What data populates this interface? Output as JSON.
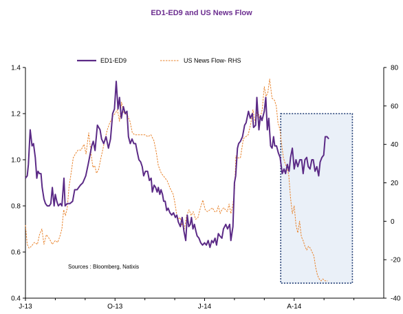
{
  "chart_data": {
    "type": "line",
    "title": "ED1-ED9  and US News Flow",
    "source_note": "Sources  : Bloomberg,  Natixis",
    "x_ticks": [
      "J-13",
      "O-13",
      "J-14",
      "A-14"
    ],
    "y_left_ticks": [
      "0.4",
      "0.6",
      "0.8",
      "1.0",
      "1.2",
      "1.4"
    ],
    "y_right_ticks": [
      "-40",
      "-20",
      "0",
      "20",
      "40",
      "60",
      "80"
    ],
    "ylim_left": [
      0.4,
      1.4
    ],
    "ylim_right": [
      -40,
      80
    ],
    "xlim": [
      0,
      12
    ],
    "grid": false,
    "legend_position": "top",
    "colors": {
      "ed": "#5b2a86",
      "news": "#e8822a",
      "box_border": "#1f3b73",
      "box_fill": "#eaf0f8"
    },
    "highlight_region": {
      "x": [
        8.55,
        10.95
      ],
      "y_left": [
        0.465,
        1.2
      ]
    },
    "series": [
      {
        "name": "ED1-ED9",
        "axis": "left",
        "style": "solid",
        "points": [
          [
            0.0,
            0.92
          ],
          [
            0.06,
            0.93
          ],
          [
            0.1,
            0.98
          ],
          [
            0.16,
            1.13
          ],
          [
            0.22,
            1.06
          ],
          [
            0.27,
            1.07
          ],
          [
            0.33,
            1.01
          ],
          [
            0.38,
            0.92
          ],
          [
            0.42,
            0.95
          ],
          [
            0.47,
            0.94
          ],
          [
            0.52,
            0.94
          ],
          [
            0.56,
            0.88
          ],
          [
            0.62,
            0.83
          ],
          [
            0.67,
            0.81
          ],
          [
            0.73,
            0.8
          ],
          [
            0.8,
            0.8
          ],
          [
            0.85,
            0.81
          ],
          [
            0.9,
            0.88
          ],
          [
            0.96,
            0.8
          ],
          [
            1.0,
            0.85
          ],
          [
            1.05,
            0.82
          ],
          [
            1.1,
            0.8
          ],
          [
            1.17,
            0.81
          ],
          [
            1.22,
            0.8
          ],
          [
            1.29,
            0.92
          ],
          [
            1.33,
            0.8
          ],
          [
            1.4,
            0.81
          ],
          [
            1.49,
            0.81
          ],
          [
            1.58,
            0.82
          ],
          [
            1.65,
            0.87
          ],
          [
            1.73,
            0.87
          ],
          [
            1.84,
            0.89
          ],
          [
            1.92,
            0.9
          ],
          [
            2.02,
            0.93
          ],
          [
            2.1,
            0.98
          ],
          [
            2.22,
            1.06
          ],
          [
            2.27,
            1.08
          ],
          [
            2.33,
            1.04
          ],
          [
            2.41,
            1.15
          ],
          [
            2.5,
            1.13
          ],
          [
            2.55,
            1.09
          ],
          [
            2.62,
            1.07
          ],
          [
            2.7,
            1.1
          ],
          [
            2.78,
            1.05
          ],
          [
            2.85,
            1.09
          ],
          [
            2.92,
            1.2
          ],
          [
            2.98,
            1.22
          ],
          [
            3.04,
            1.34
          ],
          [
            3.1,
            1.22
          ],
          [
            3.15,
            1.27
          ],
          [
            3.21,
            1.18
          ],
          [
            3.28,
            1.23
          ],
          [
            3.34,
            1.2
          ],
          [
            3.4,
            1.21
          ],
          [
            3.45,
            1.1
          ],
          [
            3.51,
            1.07
          ],
          [
            3.57,
            1.09
          ],
          [
            3.63,
            1.07
          ],
          [
            3.69,
            1.07
          ],
          [
            3.75,
            1.03
          ],
          [
            3.8,
            1.0
          ],
          [
            3.86,
            0.99
          ],
          [
            3.91,
            0.97
          ],
          [
            3.96,
            0.93
          ],
          [
            4.02,
            0.95
          ],
          [
            4.09,
            0.95
          ],
          [
            4.15,
            0.91
          ],
          [
            4.21,
            0.92
          ],
          [
            4.25,
            0.86
          ],
          [
            4.31,
            0.89
          ],
          [
            4.36,
            0.88
          ],
          [
            4.41,
            0.86
          ],
          [
            4.45,
            0.88
          ],
          [
            4.5,
            0.85
          ],
          [
            4.54,
            0.87
          ],
          [
            4.59,
            0.85
          ],
          [
            4.63,
            0.82
          ],
          [
            4.68,
            0.82
          ],
          [
            4.73,
            0.78
          ],
          [
            4.78,
            0.79
          ],
          [
            4.84,
            0.77
          ],
          [
            4.9,
            0.76
          ],
          [
            4.96,
            0.77
          ],
          [
            5.02,
            0.75
          ],
          [
            5.07,
            0.76
          ],
          [
            5.12,
            0.73
          ],
          [
            5.19,
            0.71
          ],
          [
            5.25,
            0.75
          ],
          [
            5.31,
            0.69
          ],
          [
            5.37,
            0.65
          ],
          [
            5.42,
            0.76
          ],
          [
            5.47,
            0.71
          ],
          [
            5.52,
            0.72
          ],
          [
            5.56,
            0.75
          ],
          [
            5.61,
            0.7
          ],
          [
            5.66,
            0.72
          ],
          [
            5.71,
            0.69
          ],
          [
            5.75,
            0.67
          ],
          [
            5.81,
            0.66
          ],
          [
            5.87,
            0.64
          ],
          [
            5.93,
            0.63
          ],
          [
            6.0,
            0.64
          ],
          [
            6.06,
            0.63
          ],
          [
            6.12,
            0.65
          ],
          [
            6.18,
            0.62
          ],
          [
            6.24,
            0.65
          ],
          [
            6.29,
            0.64
          ],
          [
            6.35,
            0.66
          ],
          [
            6.4,
            0.63
          ],
          [
            6.46,
            0.68
          ],
          [
            6.51,
            0.67
          ],
          [
            6.58,
            0.66
          ],
          [
            6.63,
            0.7
          ],
          [
            6.71,
            0.72
          ],
          [
            6.77,
            0.7
          ],
          [
            6.84,
            0.72
          ],
          [
            6.88,
            0.65
          ],
          [
            6.95,
            0.71
          ],
          [
            7.0,
            0.9
          ],
          [
            7.04,
            0.93
          ],
          [
            7.1,
            1.05
          ],
          [
            7.14,
            1.07
          ],
          [
            7.2,
            1.08
          ],
          [
            7.27,
            1.1
          ],
          [
            7.34,
            1.15
          ],
          [
            7.39,
            1.16
          ],
          [
            7.47,
            1.21
          ],
          [
            7.53,
            1.18
          ],
          [
            7.6,
            1.2
          ],
          [
            7.64,
            1.14
          ],
          [
            7.71,
            1.15
          ],
          [
            7.75,
            1.27
          ],
          [
            7.82,
            1.13
          ],
          [
            7.87,
            1.19
          ],
          [
            7.92,
            1.17
          ],
          [
            8.0,
            1.21
          ],
          [
            8.05,
            1.27
          ],
          [
            8.1,
            1.13
          ],
          [
            8.15,
            1.18
          ],
          [
            8.21,
            1.06
          ],
          [
            8.26,
            1.05
          ],
          [
            8.31,
            1.1
          ],
          [
            8.35,
            1.06
          ],
          [
            8.41,
            1.06
          ],
          [
            8.47,
            1.03
          ],
          [
            8.53,
            1.01
          ],
          [
            8.6,
            0.94
          ],
          [
            8.66,
            0.96
          ],
          [
            8.71,
            0.94
          ],
          [
            8.77,
            0.98
          ],
          [
            8.83,
            0.95
          ],
          [
            8.88,
            1.01
          ],
          [
            8.94,
            1.05
          ],
          [
            9.0,
            0.96
          ],
          [
            9.06,
            1.0
          ],
          [
            9.12,
            0.97
          ],
          [
            9.19,
            1.0
          ],
          [
            9.25,
            1.0
          ],
          [
            9.3,
            0.94
          ],
          [
            9.36,
            1.0
          ],
          [
            9.42,
            1.01
          ],
          [
            9.47,
            0.97
          ],
          [
            9.53,
            0.96
          ],
          [
            9.59,
            1.0
          ],
          [
            9.64,
            1.0
          ],
          [
            9.7,
            0.95
          ],
          [
            9.76,
            0.97
          ],
          [
            9.82,
            0.93
          ],
          [
            9.87,
            0.99
          ],
          [
            9.93,
            1.01
          ],
          [
            9.99,
            1.02
          ],
          [
            10.04,
            1.1
          ],
          [
            10.1,
            1.1
          ],
          [
            10.16,
            1.09
          ]
        ]
      },
      {
        "name": "US News Flow- RHS",
        "axis": "right",
        "style": "dashed",
        "points": [
          [
            0.0,
            -2
          ],
          [
            0.06,
            -12
          ],
          [
            0.12,
            -14
          ],
          [
            0.2,
            -13
          ],
          [
            0.3,
            -11
          ],
          [
            0.4,
            -12
          ],
          [
            0.47,
            -7
          ],
          [
            0.55,
            -4
          ],
          [
            0.62,
            -12
          ],
          [
            0.7,
            -7
          ],
          [
            0.8,
            -9
          ],
          [
            0.9,
            -12
          ],
          [
            1.0,
            -10
          ],
          [
            1.08,
            -11
          ],
          [
            1.15,
            -8
          ],
          [
            1.22,
            -4
          ],
          [
            1.28,
            6
          ],
          [
            1.34,
            3
          ],
          [
            1.4,
            7
          ],
          [
            1.46,
            18
          ],
          [
            1.52,
            24
          ],
          [
            1.6,
            33
          ],
          [
            1.67,
            35
          ],
          [
            1.76,
            37
          ],
          [
            1.86,
            37
          ],
          [
            1.96,
            40
          ],
          [
            2.03,
            35
          ],
          [
            2.12,
            46
          ],
          [
            2.2,
            35
          ],
          [
            2.26,
            28
          ],
          [
            2.32,
            29
          ],
          [
            2.38,
            25
          ],
          [
            2.45,
            27
          ],
          [
            2.53,
            33
          ],
          [
            2.6,
            38
          ],
          [
            2.68,
            44
          ],
          [
            2.75,
            48
          ],
          [
            2.82,
            51
          ],
          [
            2.88,
            53
          ],
          [
            2.94,
            55
          ],
          [
            3.0,
            56
          ],
          [
            3.08,
            58
          ],
          [
            3.15,
            52
          ],
          [
            3.22,
            62
          ],
          [
            3.28,
            57
          ],
          [
            3.34,
            56
          ],
          [
            3.42,
            55
          ],
          [
            3.5,
            52
          ],
          [
            3.58,
            46
          ],
          [
            3.66,
            45
          ],
          [
            3.74,
            45
          ],
          [
            3.82,
            45
          ],
          [
            3.92,
            45
          ],
          [
            4.0,
            45
          ],
          [
            4.1,
            44
          ],
          [
            4.2,
            45
          ],
          [
            4.3,
            42
          ],
          [
            4.38,
            36
          ],
          [
            4.45,
            29
          ],
          [
            4.55,
            25
          ],
          [
            4.65,
            23
          ],
          [
            4.75,
            21
          ],
          [
            4.85,
            17
          ],
          [
            4.95,
            14
          ],
          [
            5.0,
            10
          ],
          [
            5.06,
            4
          ],
          [
            5.12,
            1
          ],
          [
            5.18,
            2
          ],
          [
            5.25,
            -2
          ],
          [
            5.32,
            -4
          ],
          [
            5.4,
            3
          ],
          [
            5.48,
            6
          ],
          [
            5.55,
            3
          ],
          [
            5.62,
            5
          ],
          [
            5.7,
            1
          ],
          [
            5.78,
            2
          ],
          [
            5.86,
            7
          ],
          [
            5.94,
            11
          ],
          [
            6.02,
            6
          ],
          [
            6.1,
            5
          ],
          [
            6.18,
            6
          ],
          [
            6.26,
            7
          ],
          [
            6.34,
            5
          ],
          [
            6.4,
            5
          ],
          [
            6.46,
            8
          ],
          [
            6.52,
            4
          ],
          [
            6.58,
            6
          ],
          [
            6.64,
            7
          ],
          [
            6.7,
            6
          ],
          [
            6.76,
            5
          ],
          [
            6.82,
            9
          ],
          [
            6.88,
            4
          ],
          [
            6.94,
            8
          ],
          [
            7.0,
            15
          ],
          [
            7.05,
            34
          ],
          [
            7.1,
            33
          ],
          [
            7.2,
            33
          ],
          [
            7.3,
            43
          ],
          [
            7.38,
            44
          ],
          [
            7.46,
            45
          ],
          [
            7.55,
            51
          ],
          [
            7.62,
            58
          ],
          [
            7.7,
            51
          ],
          [
            7.78,
            58
          ],
          [
            7.85,
            53
          ],
          [
            7.93,
            58
          ],
          [
            8.0,
            70
          ],
          [
            8.06,
            65
          ],
          [
            8.12,
            67
          ],
          [
            8.18,
            74
          ],
          [
            8.26,
            64
          ],
          [
            8.34,
            63
          ],
          [
            8.4,
            60
          ],
          [
            8.46,
            51
          ],
          [
            8.52,
            48
          ],
          [
            8.58,
            40
          ],
          [
            8.64,
            33
          ],
          [
            8.7,
            30
          ],
          [
            8.76,
            28
          ],
          [
            8.82,
            24
          ],
          [
            8.88,
            12
          ],
          [
            8.94,
            4
          ],
          [
            9.0,
            8
          ],
          [
            9.06,
            -2
          ],
          [
            9.12,
            -6
          ],
          [
            9.18,
            0
          ],
          [
            9.24,
            -8
          ],
          [
            9.3,
            -10
          ],
          [
            9.36,
            -13
          ],
          [
            9.42,
            -15
          ],
          [
            9.48,
            -13
          ],
          [
            9.54,
            -14
          ],
          [
            9.6,
            -16
          ],
          [
            9.66,
            -18
          ],
          [
            9.72,
            -24
          ],
          [
            9.78,
            -28
          ],
          [
            9.84,
            -30
          ],
          [
            9.9,
            -31
          ],
          [
            9.96,
            -30
          ],
          [
            10.04,
            -31
          ],
          [
            10.12,
            -31
          ]
        ]
      }
    ]
  }
}
